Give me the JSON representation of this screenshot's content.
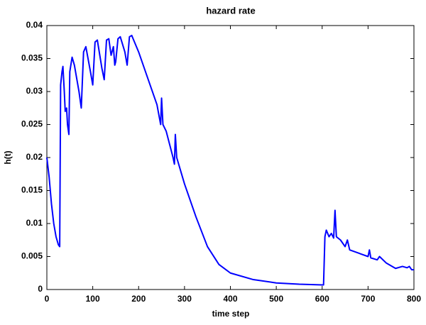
{
  "chart_data": {
    "type": "line",
    "title": "hazard rate",
    "x_label": "time step",
    "y_label": "h(t)",
    "x": [
      0,
      5,
      10,
      15,
      20,
      25,
      28,
      30,
      33,
      35,
      38,
      40,
      43,
      45,
      48,
      50,
      55,
      60,
      70,
      75,
      80,
      85,
      95,
      100,
      105,
      110,
      120,
      125,
      130,
      135,
      140,
      145,
      148,
      150,
      155,
      160,
      170,
      175,
      180,
      185,
      200,
      220,
      240,
      248,
      250,
      253,
      260,
      275,
      278,
      280,
      283,
      300,
      325,
      350,
      375,
      400,
      450,
      500,
      550,
      600,
      603,
      606,
      609,
      615,
      620,
      625,
      628,
      631,
      640,
      650,
      655,
      660,
      680,
      700,
      703,
      706,
      720,
      725,
      740,
      760,
      775,
      785,
      790,
      795,
      800
    ],
    "values": [
      0.02,
      0.017,
      0.013,
      0.01,
      0.008,
      0.0068,
      0.0065,
      0.031,
      0.033,
      0.0338,
      0.03,
      0.027,
      0.0275,
      0.025,
      0.0235,
      0.033,
      0.0352,
      0.034,
      0.03,
      0.0275,
      0.036,
      0.0368,
      0.033,
      0.031,
      0.0375,
      0.0378,
      0.0335,
      0.0318,
      0.0378,
      0.038,
      0.0355,
      0.0368,
      0.034,
      0.0345,
      0.038,
      0.0383,
      0.036,
      0.034,
      0.0383,
      0.0385,
      0.036,
      0.032,
      0.028,
      0.025,
      0.029,
      0.025,
      0.024,
      0.02,
      0.019,
      0.0235,
      0.02,
      0.016,
      0.011,
      0.0065,
      0.0038,
      0.0025,
      0.0015,
      0.001,
      0.0008,
      0.0007,
      0.0007,
      0.008,
      0.009,
      0.008,
      0.0085,
      0.0078,
      0.012,
      0.008,
      0.0075,
      0.0065,
      0.0075,
      0.006,
      0.0055,
      0.005,
      0.006,
      0.0048,
      0.0045,
      0.005,
      0.004,
      0.0032,
      0.0035,
      0.0033,
      0.0035,
      0.003,
      0.003
    ],
    "color": "#0000ff",
    "xlim": [
      0,
      800
    ],
    "xticks": [
      0,
      100,
      200,
      300,
      400,
      500,
      600,
      700,
      800
    ],
    "ylim": [
      0,
      0.04
    ],
    "yticks": [
      0,
      0.005,
      0.01,
      0.015,
      0.02,
      0.025,
      0.03,
      0.035,
      0.04
    ],
    "grid": false
  }
}
